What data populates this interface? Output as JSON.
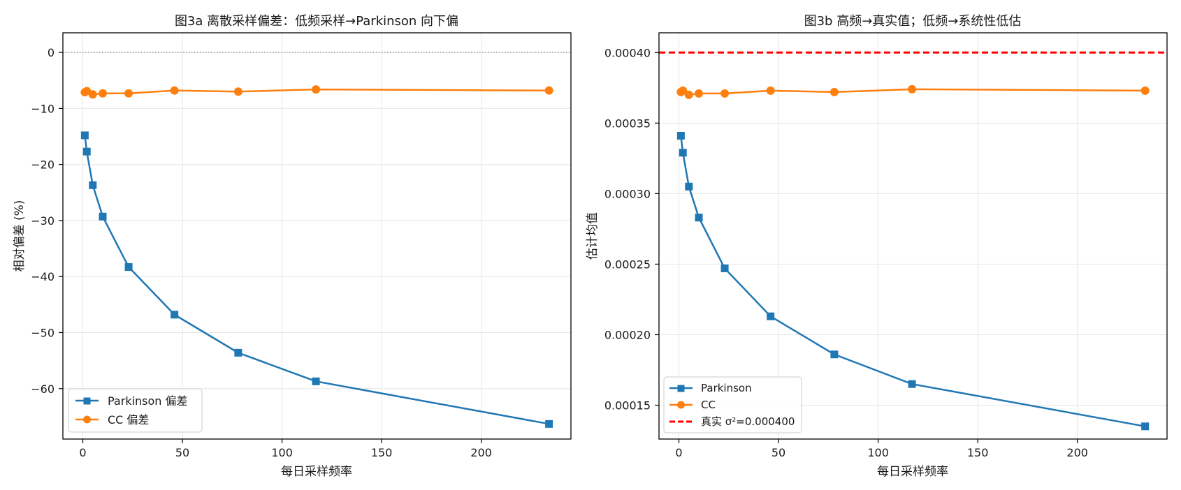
{
  "colors": {
    "parkinson": "#1f77b4",
    "cc": "#ff7f0e",
    "true_line": "#ff0000",
    "zero_line": "#888888"
  },
  "chart_data": [
    {
      "type": "line",
      "title": "图3a  离散采样偏差：低频采样→Parkinson 向下偏",
      "xlabel": "每日采样频率",
      "ylabel": "相对偏差 (%)",
      "xlim": [
        -10,
        245
      ],
      "ylim": [
        -69,
        3.5
      ],
      "xticks": [
        0,
        50,
        100,
        150,
        200
      ],
      "xtick_labels": [
        "0",
        "50",
        "100",
        "150",
        "200"
      ],
      "yticks": [
        0,
        -10,
        -20,
        -30,
        -40,
        -50,
        -60
      ],
      "ytick_labels": [
        "0",
        "−10",
        "−20",
        "−30",
        "−40",
        "−50",
        "−60"
      ],
      "grid": true,
      "legend_position": "lower-left",
      "reference_line": {
        "y": 0,
        "style": "dotted"
      },
      "x": [
        1,
        2,
        5,
        10,
        23,
        46,
        78,
        117,
        234
      ],
      "series": [
        {
          "name": "Parkinson 偏差",
          "marker": "square",
          "color_key": "parkinson",
          "values": [
            -14.8,
            -17.7,
            -23.7,
            -29.3,
            -38.3,
            -46.8,
            -53.6,
            -58.7,
            -66.3
          ]
        },
        {
          "name": "CC 偏差",
          "marker": "circle",
          "color_key": "cc",
          "values": [
            -7.1,
            -6.9,
            -7.5,
            -7.3,
            -7.3,
            -6.8,
            -7.0,
            -6.6,
            -6.8
          ]
        }
      ]
    },
    {
      "type": "line",
      "title": "图3b  高频→真实值；低频→系统性低估",
      "xlabel": "每日采样频率",
      "ylabel": "估计均值",
      "xlim": [
        -10,
        245
      ],
      "ylim": [
        0.000126,
        0.000414
      ],
      "xticks": [
        0,
        50,
        100,
        150,
        200
      ],
      "xtick_labels": [
        "0",
        "50",
        "100",
        "150",
        "200"
      ],
      "yticks": [
        0.00015,
        0.0002,
        0.00025,
        0.0003,
        0.00035,
        0.0004
      ],
      "ytick_labels": [
        "0.00015",
        "0.00020",
        "0.00025",
        "0.00030",
        "0.00035",
        "0.00040"
      ],
      "grid": true,
      "legend_position": "lower-left",
      "reference_line": {
        "y": 0.0004,
        "style": "dashed",
        "label": "真实 σ²=0.000400"
      },
      "x": [
        1,
        2,
        5,
        10,
        23,
        46,
        78,
        117,
        234
      ],
      "series": [
        {
          "name": "Parkinson",
          "marker": "square",
          "color_key": "parkinson",
          "values": [
            0.000341,
            0.000329,
            0.000305,
            0.000283,
            0.000247,
            0.000213,
            0.000186,
            0.000165,
            0.000135
          ]
        },
        {
          "name": "CC",
          "marker": "circle",
          "color_key": "cc",
          "values": [
            0.000372,
            0.000373,
            0.00037,
            0.000371,
            0.000371,
            0.000373,
            0.000372,
            0.000374,
            0.000373
          ]
        }
      ]
    }
  ]
}
